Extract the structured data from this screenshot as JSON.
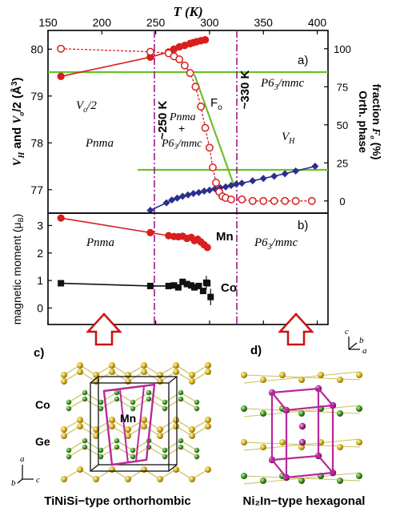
{
  "chart_data": [
    {
      "type": "scatter",
      "panel_label": "a)",
      "x_title": "T (K)",
      "x_ticks": [
        "150",
        "200",
        "250",
        "300",
        "350",
        "400"
      ],
      "xlim": [
        150,
        410
      ],
      "y_left_title": "V_H and V_o/2 (Å^3)",
      "y_left_ticks": [
        "77",
        "78",
        "79",
        "80"
      ],
      "ylim_left": [
        76.5,
        80.4
      ],
      "y_right_title": "Orth. phase fraction F_o (%)",
      "y_right_ticks": [
        "0",
        "25",
        "50",
        "75",
        "100"
      ],
      "ylim_right": [
        -8,
        112
      ],
      "transition_lines": [
        {
          "x": 245,
          "label": "~250 K"
        },
        {
          "x": 327,
          "label": "~330 K"
        }
      ],
      "region_labels": [
        "Pnma",
        "Pnma + P6_3/mmc",
        "P6_3/mmc"
      ],
      "series": [
        {
          "name": "V_o/2",
          "axis": "left",
          "x": [
            162,
            245,
            262,
            267,
            272,
            277,
            282,
            285,
            288,
            292,
            296
          ],
          "y": [
            79.42,
            79.83,
            79.94,
            80.0,
            80.05,
            80.08,
            80.12,
            80.14,
            80.16,
            80.18,
            80.2
          ]
        },
        {
          "name": "V_H",
          "axis": "left",
          "x": [
            245,
            260,
            265,
            270,
            275,
            280,
            285,
            290,
            295,
            300,
            305,
            310,
            315,
            320,
            325,
            330,
            340,
            350,
            360,
            370,
            380,
            398
          ],
          "y": [
            76.56,
            76.72,
            76.78,
            76.82,
            76.86,
            76.89,
            76.92,
            76.94,
            76.97,
            76.99,
            77.02,
            77.04,
            77.06,
            77.09,
            77.12,
            77.14,
            77.19,
            77.24,
            77.29,
            77.34,
            77.4,
            77.5
          ]
        },
        {
          "name": "F_o",
          "axis": "right",
          "x": [
            162,
            245,
            262,
            267,
            272,
            277,
            282,
            287,
            292,
            296,
            300,
            303,
            306,
            309,
            312,
            315,
            320,
            330,
            340,
            350,
            360,
            370,
            380,
            395
          ],
          "y": [
            100,
            98,
            97,
            95,
            93,
            89,
            84,
            75,
            62,
            48,
            35,
            22,
            12,
            6,
            3,
            2,
            1,
            1,
            0,
            0,
            0,
            0,
            0,
            0
          ]
        }
      ],
      "annotations": [
        "F_o"
      ],
      "colors": {
        "vo": "#d81e1e",
        "vh": "#2b2f8c",
        "fraction": "#d81e1e",
        "guide": "#6cc12a",
        "transition": "#9c1a8c"
      }
    },
    {
      "type": "scatter",
      "panel_label": "b)",
      "xlim": [
        150,
        410
      ],
      "y_title": "magnetic moment (μB)",
      "y_ticks": [
        "0",
        "1",
        "2",
        "3"
      ],
      "ylim": [
        -0.6,
        3.45
      ],
      "region_labels": [
        "Pnma",
        "P6_3/mmc"
      ],
      "series": [
        {
          "name": "Mn",
          "x": [
            162,
            245,
            262,
            267,
            271,
            275,
            279,
            283,
            286,
            289,
            292,
            295,
            298
          ],
          "y": [
            3.27,
            2.74,
            2.63,
            2.6,
            2.59,
            2.61,
            2.53,
            2.57,
            2.45,
            2.5,
            2.4,
            2.3,
            2.2
          ]
        },
        {
          "name": "Co",
          "x": [
            162,
            245,
            262,
            267,
            271,
            275,
            279,
            283,
            286,
            290,
            294,
            297,
            298,
            301
          ],
          "y": [
            0.9,
            0.8,
            0.8,
            0.82,
            0.75,
            0.95,
            0.87,
            0.82,
            0.75,
            0.8,
            0.62,
            0.92,
            0.9,
            0.4
          ]
        }
      ],
      "error_bars": [
        {
          "x": 297,
          "y": 0.92,
          "err": 0.25
        },
        {
          "x": 301,
          "y": 0.4,
          "err": 0.3
        }
      ],
      "colors": {
        "mn": "#d81e1e",
        "co": "#111111"
      }
    }
  ],
  "structures": {
    "left_panel_label": "c)",
    "right_panel_label": "d)",
    "left_caption": "TiNiSi−type  orthorhombic",
    "right_caption": "Ni₂In−type  hexagonal",
    "left_atoms": [
      "Co",
      "Ge",
      "Mn"
    ],
    "left_axes": [
      "a",
      "b",
      "c"
    ],
    "right_axes": [
      "c",
      "b",
      "a"
    ],
    "colors": {
      "ge": "#d9b321",
      "co": "#3f9a22",
      "mn": "#b8289c",
      "bond": "#c9c060",
      "cell": "#111111",
      "arrow": "#cc1111"
    }
  }
}
